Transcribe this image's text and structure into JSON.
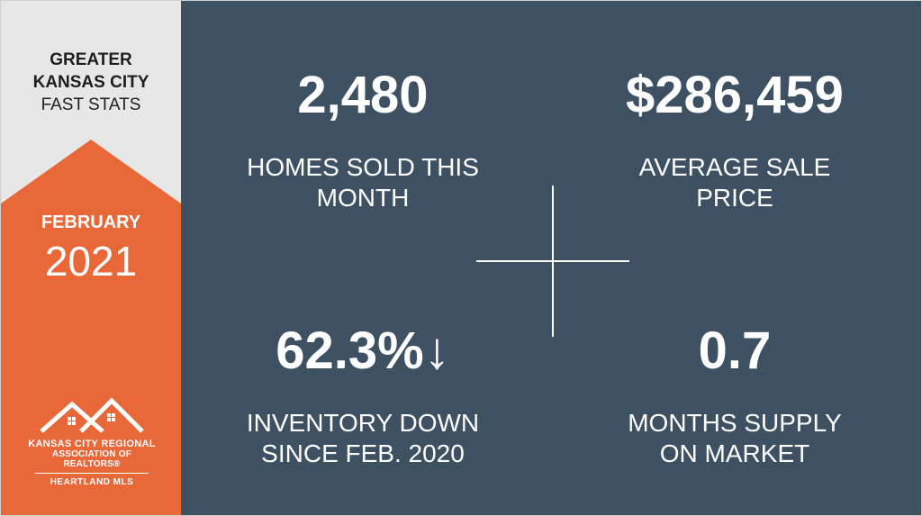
{
  "sidebar": {
    "header_line1": "GREATER",
    "header_line2": "KANSAS CITY",
    "header_line3": "FAST STATS",
    "month": "FEBRUARY",
    "year": "2021",
    "logo": {
      "line1": "KANSAS CITY REGIONAL",
      "line2": "ASSOCIATION OF REALTORS®",
      "line3": "HEARTLAND MLS"
    }
  },
  "stats": [
    {
      "value": "2,480",
      "label_line1": "HOMES SOLD THIS",
      "label_line2": "MONTH"
    },
    {
      "value": "$286,459",
      "label_line1": "AVERAGE SALE",
      "label_line2": "PRICE"
    },
    {
      "value": "62.3%↓",
      "label_line1": "INVENTORY DOWN",
      "label_line2": "SINCE FEB. 2020"
    },
    {
      "value": "0.7",
      "label_line1": "MONTHS SUPPLY",
      "label_line2": "ON MARKET"
    }
  ],
  "colors": {
    "accent": "#e8683a",
    "panel": "#3e5163",
    "sidebar": "#e8e7e8",
    "text_light": "#ffffff",
    "text_dark": "#1e1e1e"
  },
  "icons": {
    "logo": "house-roofs-icon",
    "divider": "cross-divider"
  }
}
